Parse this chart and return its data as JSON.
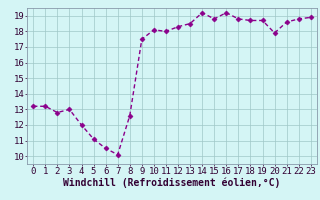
{
  "x": [
    0,
    1,
    2,
    3,
    4,
    5,
    6,
    7,
    8,
    9,
    10,
    11,
    12,
    13,
    14,
    15,
    16,
    17,
    18,
    19,
    20,
    21,
    22,
    23
  ],
  "y": [
    13.2,
    13.2,
    12.8,
    13.0,
    12.0,
    11.1,
    10.5,
    10.1,
    12.6,
    17.5,
    18.1,
    18.0,
    18.3,
    18.5,
    19.2,
    18.8,
    19.2,
    18.8,
    18.7,
    18.7,
    17.9,
    18.6,
    18.8,
    18.9
  ],
  "line_color": "#8b008b",
  "marker_color": "#8b008b",
  "bg_color": "#d4f5f5",
  "grid_color": "#a0c8c8",
  "xlabel": "Windchill (Refroidissement éolien,°C)",
  "xlim": [
    -0.5,
    23.5
  ],
  "ylim": [
    9.5,
    19.5
  ],
  "xticks": [
    0,
    1,
    2,
    3,
    4,
    5,
    6,
    7,
    8,
    9,
    10,
    11,
    12,
    13,
    14,
    15,
    16,
    17,
    18,
    19,
    20,
    21,
    22,
    23
  ],
  "yticks": [
    10,
    11,
    12,
    13,
    14,
    15,
    16,
    17,
    18,
    19
  ],
  "tick_fontsize": 6.5,
  "xlabel_fontsize": 7,
  "marker_size": 2.5,
  "line_width": 1.0
}
